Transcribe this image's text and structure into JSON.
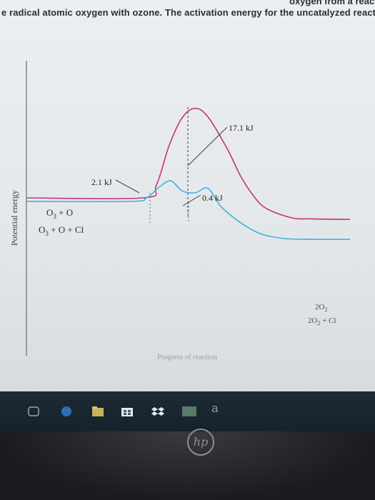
{
  "page": {
    "top_text": "e radical atomic oxygen with ozone. The activation energy for the uncatalyzed reactio",
    "top_text_crop": "oxygen from a reactio"
  },
  "chart_data": {
    "type": "line",
    "title": "",
    "xlabel": "Progress of reaction",
    "ylabel": "Potential energy",
    "grid": false,
    "series": [
      {
        "key": "uncatalyzed",
        "color": "#c7336f",
        "x": [
          0.0,
          0.36,
          0.4,
          0.44,
          0.48,
          0.52,
          0.56,
          0.62,
          0.66,
          0.7,
          0.74,
          0.82,
          0.88,
          1.0
        ],
        "y": [
          4.0,
          4.0,
          6.5,
          14.5,
          20.0,
          21.9,
          20.2,
          13.8,
          8.5,
          4.5,
          1.9,
          0.0,
          -0.2,
          -0.3
        ]
      },
      {
        "key": "catalyzed",
        "color": "#3fb3dc",
        "x": [
          0.0,
          0.32,
          0.37,
          0.41,
          0.445,
          0.48,
          0.52,
          0.56,
          0.6,
          0.66,
          0.72,
          0.78,
          0.84,
          1.0
        ],
        "y": [
          3.3,
          3.3,
          4.0,
          6.2,
          7.4,
          5.4,
          5.0,
          5.9,
          2.3,
          -0.9,
          -3.1,
          -4.0,
          -4.25,
          -4.3
        ]
      }
    ],
    "annotations": {
      "reactants_upper": {
        "main": "O",
        "sub": "3",
        "rest": " + O"
      },
      "reactants_lower": {
        "main": "O",
        "sub": "3",
        "rest": " + O + Cl"
      },
      "products_upper": {
        "main": "2O",
        "sub": "2",
        "rest": ""
      },
      "products_lower": {
        "main": "2O",
        "sub": "2",
        "rest": " + Cl"
      },
      "ea_uncatalyzed": "17.1 kJ",
      "ea_catalyzed_step1": "2.1 kJ",
      "ea_catalyzed_step2": "0.4 kJ"
    }
  },
  "taskbar": {
    "icons": [
      "task-view-icon",
      "edge-icon",
      "file-explorer-icon",
      "store-icon",
      "dropbox-icon",
      "app-icon",
      "app-icon-a"
    ],
    "label_a": "a"
  },
  "bezel": {
    "logo": "hp"
  }
}
